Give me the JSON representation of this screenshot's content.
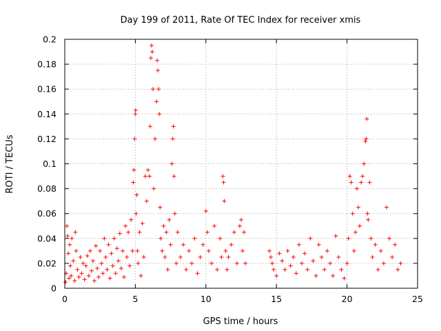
{
  "chart_data": {
    "type": "scatter",
    "title": "Day 199 of 2011, Rate Of TEC Index for receiver xmis",
    "xlabel": "GPS time / hours",
    "ylabel": "ROTI / TECUs",
    "xlim": [
      0,
      25
    ],
    "ylim": [
      0,
      0.2
    ],
    "x_ticks": [
      0,
      5,
      10,
      15,
      20,
      25
    ],
    "x_tick_labels": [
      "0",
      "5",
      "10",
      "15",
      "20",
      "25"
    ],
    "y_ticks": [
      0,
      0.02,
      0.04,
      0.06,
      0.08,
      0.1,
      0.12,
      0.14,
      0.16,
      0.18,
      0.2
    ],
    "y_tick_labels": [
      "0",
      "0.02",
      "0.04",
      "0.06",
      "0.08",
      "0.1",
      "0.12",
      "0.14",
      "0.16",
      "0.18",
      "0.2"
    ],
    "grid": true,
    "marker": "plus",
    "color": "#ff0000",
    "points": [
      [
        0.05,
        0.005
      ],
      [
        0.1,
        0.012
      ],
      [
        0.15,
        0.05
      ],
      [
        0.2,
        0.042
      ],
      [
        0.25,
        0.028
      ],
      [
        0.3,
        0.008
      ],
      [
        0.35,
        0.035
      ],
      [
        0.4,
        0.018
      ],
      [
        0.45,
        0.01
      ],
      [
        0.5,
        0.04
      ],
      [
        0.6,
        0.022
      ],
      [
        0.7,
        0.006
      ],
      [
        0.75,
        0.045
      ],
      [
        0.8,
        0.03
      ],
      [
        0.9,
        0.015
      ],
      [
        1.0,
        0.009
      ],
      [
        1.1,
        0.025
      ],
      [
        1.2,
        0.012
      ],
      [
        1.3,
        0.02
      ],
      [
        1.4,
        0.007
      ],
      [
        1.5,
        0.018
      ],
      [
        1.6,
        0.026
      ],
      [
        1.7,
        0.01
      ],
      [
        1.8,
        0.03
      ],
      [
        1.9,
        0.014
      ],
      [
        2.0,
        0.022
      ],
      [
        2.1,
        0.006
      ],
      [
        2.2,
        0.034
      ],
      [
        2.3,
        0.016
      ],
      [
        2.4,
        0.009
      ],
      [
        2.5,
        0.03
      ],
      [
        2.6,
        0.02
      ],
      [
        2.7,
        0.012
      ],
      [
        2.8,
        0.04
      ],
      [
        2.9,
        0.025
      ],
      [
        3.0,
        0.015
      ],
      [
        3.1,
        0.035
      ],
      [
        3.2,
        0.008
      ],
      [
        3.3,
        0.028
      ],
      [
        3.4,
        0.018
      ],
      [
        3.5,
        0.04
      ],
      [
        3.6,
        0.012
      ],
      [
        3.7,
        0.032
      ],
      [
        3.8,
        0.022
      ],
      [
        3.9,
        0.044
      ],
      [
        4.0,
        0.016
      ],
      [
        4.1,
        0.03
      ],
      [
        4.2,
        0.009
      ],
      [
        4.3,
        0.05
      ],
      [
        4.4,
        0.025
      ],
      [
        4.5,
        0.045
      ],
      [
        4.6,
        0.018
      ],
      [
        4.7,
        0.055
      ],
      [
        4.8,
        0.03
      ],
      [
        4.85,
        0.085
      ],
      [
        4.9,
        0.095
      ],
      [
        4.95,
        0.12
      ],
      [
        5.0,
        0.14
      ],
      [
        5.02,
        0.143
      ],
      [
        5.05,
        0.06
      ],
      [
        5.1,
        0.075
      ],
      [
        5.15,
        0.03
      ],
      [
        5.2,
        0.02
      ],
      [
        5.3,
        0.045
      ],
      [
        5.4,
        0.01
      ],
      [
        5.5,
        0.052
      ],
      [
        5.6,
        0.025
      ],
      [
        5.7,
        0.09
      ],
      [
        5.8,
        0.07
      ],
      [
        5.9,
        0.095
      ],
      [
        6.0,
        0.09
      ],
      [
        6.05,
        0.13
      ],
      [
        6.1,
        0.185
      ],
      [
        6.15,
        0.195
      ],
      [
        6.2,
        0.19
      ],
      [
        6.25,
        0.16
      ],
      [
        6.3,
        0.08
      ],
      [
        6.4,
        0.12
      ],
      [
        6.5,
        0.15
      ],
      [
        6.55,
        0.183
      ],
      [
        6.6,
        0.175
      ],
      [
        6.65,
        0.16
      ],
      [
        6.7,
        0.14
      ],
      [
        6.75,
        0.065
      ],
      [
        6.8,
        0.04
      ],
      [
        6.9,
        0.03
      ],
      [
        7.0,
        0.05
      ],
      [
        7.1,
        0.025
      ],
      [
        7.2,
        0.045
      ],
      [
        7.3,
        0.015
      ],
      [
        7.4,
        0.055
      ],
      [
        7.5,
        0.035
      ],
      [
        7.6,
        0.1
      ],
      [
        7.65,
        0.12
      ],
      [
        7.7,
        0.13
      ],
      [
        7.75,
        0.09
      ],
      [
        7.8,
        0.06
      ],
      [
        7.9,
        0.02
      ],
      [
        8.0,
        0.045
      ],
      [
        8.2,
        0.025
      ],
      [
        8.4,
        0.035
      ],
      [
        8.6,
        0.015
      ],
      [
        8.8,
        0.03
      ],
      [
        9.0,
        0.02
      ],
      [
        9.2,
        0.04
      ],
      [
        9.4,
        0.012
      ],
      [
        9.6,
        0.025
      ],
      [
        9.8,
        0.035
      ],
      [
        10.0,
        0.062
      ],
      [
        10.1,
        0.045
      ],
      [
        10.2,
        0.03
      ],
      [
        10.4,
        0.02
      ],
      [
        10.6,
        0.05
      ],
      [
        10.8,
        0.015
      ],
      [
        11.0,
        0.04
      ],
      [
        11.1,
        0.025
      ],
      [
        11.2,
        0.09
      ],
      [
        11.25,
        0.085
      ],
      [
        11.3,
        0.07
      ],
      [
        11.4,
        0.03
      ],
      [
        11.5,
        0.015
      ],
      [
        11.6,
        0.025
      ],
      [
        11.8,
        0.035
      ],
      [
        12.0,
        0.045
      ],
      [
        12.2,
        0.02
      ],
      [
        12.4,
        0.05
      ],
      [
        12.5,
        0.055
      ],
      [
        12.6,
        0.03
      ],
      [
        12.7,
        0.045
      ],
      [
        12.8,
        0.02
      ],
      [
        14.5,
        0.03
      ],
      [
        14.6,
        0.025
      ],
      [
        14.7,
        0.02
      ],
      [
        14.8,
        0.015
      ],
      [
        15.0,
        0.01
      ],
      [
        15.2,
        0.028
      ],
      [
        15.4,
        0.022
      ],
      [
        15.6,
        0.015
      ],
      [
        15.8,
        0.03
      ],
      [
        16.0,
        0.018
      ],
      [
        16.2,
        0.025
      ],
      [
        16.4,
        0.012
      ],
      [
        16.6,
        0.035
      ],
      [
        16.8,
        0.02
      ],
      [
        17.0,
        0.028
      ],
      [
        17.2,
        0.015
      ],
      [
        17.4,
        0.04
      ],
      [
        17.6,
        0.022
      ],
      [
        17.8,
        0.01
      ],
      [
        18.0,
        0.035
      ],
      [
        18.2,
        0.025
      ],
      [
        18.4,
        0.015
      ],
      [
        18.6,
        0.03
      ],
      [
        18.8,
        0.02
      ],
      [
        19.0,
        0.01
      ],
      [
        19.2,
        0.042
      ],
      [
        19.4,
        0.025
      ],
      [
        19.6,
        0.015
      ],
      [
        19.8,
        0.008
      ],
      [
        20.0,
        0.02
      ],
      [
        20.1,
        0.04
      ],
      [
        20.2,
        0.09
      ],
      [
        20.3,
        0.085
      ],
      [
        20.4,
        0.06
      ],
      [
        20.5,
        0.03
      ],
      [
        20.6,
        0.045
      ],
      [
        20.7,
        0.08
      ],
      [
        20.8,
        0.065
      ],
      [
        20.9,
        0.05
      ],
      [
        21.0,
        0.085
      ],
      [
        21.1,
        0.09
      ],
      [
        21.2,
        0.1
      ],
      [
        21.3,
        0.118
      ],
      [
        21.35,
        0.12
      ],
      [
        21.4,
        0.136
      ],
      [
        21.45,
        0.06
      ],
      [
        21.5,
        0.055
      ],
      [
        21.6,
        0.085
      ],
      [
        21.7,
        0.04
      ],
      [
        21.8,
        0.025
      ],
      [
        22.0,
        0.035
      ],
      [
        22.2,
        0.015
      ],
      [
        22.4,
        0.03
      ],
      [
        22.6,
        0.02
      ],
      [
        22.8,
        0.065
      ],
      [
        23.0,
        0.04
      ],
      [
        23.2,
        0.025
      ],
      [
        23.4,
        0.035
      ],
      [
        23.6,
        0.015
      ],
      [
        23.8,
        0.02
      ]
    ]
  }
}
